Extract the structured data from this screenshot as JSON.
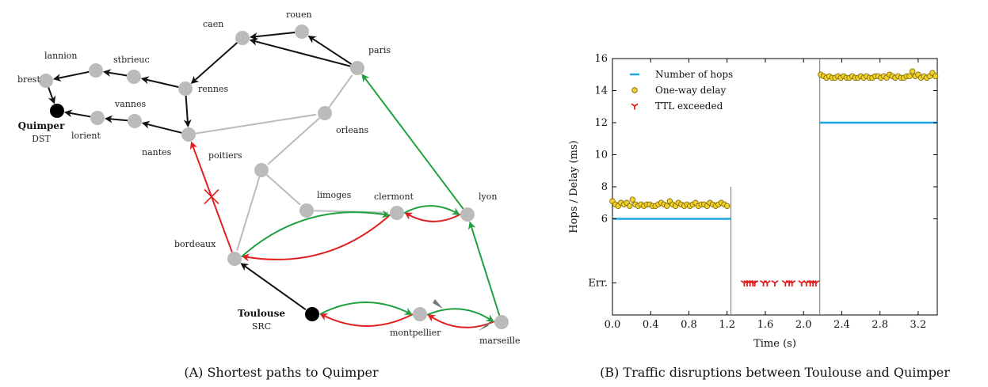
{
  "panel_a": {
    "caption": "(A) Shortest paths to Quimper",
    "nodes": [
      {
        "id": "brest",
        "label": "brest",
        "kind": "normal"
      },
      {
        "id": "lannion",
        "label": "lannion",
        "kind": "normal"
      },
      {
        "id": "stbrieuc",
        "label": "stbrieuc",
        "kind": "normal"
      },
      {
        "id": "caen",
        "label": "caen",
        "kind": "normal"
      },
      {
        "id": "rouen",
        "label": "rouen",
        "kind": "normal"
      },
      {
        "id": "paris",
        "label": "paris",
        "kind": "normal"
      },
      {
        "id": "rennes",
        "label": "rennes",
        "kind": "normal"
      },
      {
        "id": "vannes",
        "label": "vannes",
        "kind": "normal"
      },
      {
        "id": "lorient",
        "label": "lorient",
        "kind": "normal"
      },
      {
        "id": "nantes",
        "label": "nantes",
        "kind": "normal"
      },
      {
        "id": "orleans",
        "label": "orleans",
        "kind": "normal"
      },
      {
        "id": "poitiers",
        "label": "poitiers",
        "kind": "normal"
      },
      {
        "id": "limoges",
        "label": "limoges",
        "kind": "normal"
      },
      {
        "id": "clermont",
        "label": "clermont",
        "kind": "normal"
      },
      {
        "id": "lyon",
        "label": "lyon",
        "kind": "normal"
      },
      {
        "id": "bordeaux",
        "label": "bordeaux",
        "kind": "normal"
      },
      {
        "id": "montpellier",
        "label": "montpellier",
        "kind": "normal"
      },
      {
        "id": "marseille",
        "label": "marseille",
        "kind": "normal"
      },
      {
        "id": "quimper",
        "label": "Quimper",
        "sublabel": "DST",
        "kind": "endpoint"
      },
      {
        "id": "toulouse",
        "label": "Toulouse",
        "sublabel": "SRC",
        "kind": "endpoint"
      }
    ],
    "edges": [
      {
        "from": "rennes",
        "to": "nantes",
        "color": "#111111",
        "arrow": true
      },
      {
        "from": "nantes",
        "to": "vannes",
        "color": "#111111",
        "arrow": true
      },
      {
        "from": "vannes",
        "to": "lorient",
        "color": "#111111",
        "arrow": true
      },
      {
        "from": "lorient",
        "to": "quimper",
        "color": "#111111",
        "arrow": true
      },
      {
        "from": "brest",
        "to": "quimper",
        "color": "#111111",
        "arrow": true
      },
      {
        "from": "lannion",
        "to": "brest",
        "color": "#111111",
        "arrow": true
      },
      {
        "from": "stbrieuc",
        "to": "lannion",
        "color": "#111111",
        "arrow": true
      },
      {
        "from": "rennes",
        "to": "stbrieuc",
        "color": "#111111",
        "arrow": true
      },
      {
        "from": "caen",
        "to": "rennes",
        "color": "#111111",
        "arrow": true
      },
      {
        "from": "rouen",
        "to": "caen",
        "color": "#111111",
        "arrow": true
      },
      {
        "from": "paris",
        "to": "caen",
        "color": "#111111",
        "arrow": true
      },
      {
        "from": "paris",
        "to": "rouen",
        "color": "#111111",
        "arrow": true
      },
      {
        "from": "toulouse",
        "to": "bordeaux",
        "color": "#111111",
        "arrow": true
      },
      {
        "from": "nantes",
        "to": "orleans",
        "color": "#bbbbbb",
        "arrow": false
      },
      {
        "from": "orleans",
        "to": "paris",
        "color": "#bbbbbb",
        "arrow": false
      },
      {
        "from": "orleans",
        "to": "poitiers",
        "color": "#bbbbbb",
        "arrow": false
      },
      {
        "from": "poitiers",
        "to": "bordeaux",
        "color": "#bbbbbb",
        "arrow": false
      },
      {
        "from": "poitiers",
        "to": "limoges",
        "color": "#bbbbbb",
        "arrow": false
      },
      {
        "from": "limoges",
        "to": "clermont",
        "color": "#bbbbbb",
        "arrow": false
      },
      {
        "from": "bordeaux",
        "to": "nantes",
        "color": "#e02020",
        "arrow": true,
        "cross": true
      },
      {
        "from": "clermont",
        "to": "bordeaux",
        "color": "#e02020",
        "arrow": true,
        "bend": -1
      },
      {
        "from": "lyon",
        "to": "clermont",
        "color": "#e02020",
        "arrow": true,
        "bend": -1
      },
      {
        "from": "marseille",
        "to": "montpellier",
        "color": "#e02020",
        "arrow": true,
        "bend": -1
      },
      {
        "from": "montpellier",
        "to": "toulouse",
        "color": "#e02020",
        "arrow": true,
        "bend": -1
      },
      {
        "from": "toulouse",
        "to": "montpellier",
        "color": "#20a040",
        "arrow": true,
        "bend": -1
      },
      {
        "from": "montpellier",
        "to": "marseille",
        "color": "#20a040",
        "arrow": true,
        "bend": -1
      },
      {
        "from": "marseille",
        "to": "lyon",
        "color": "#20a040",
        "arrow": true
      },
      {
        "from": "lyon",
        "to": "paris",
        "color": "#20a040",
        "arrow": true
      },
      {
        "from": "bordeaux",
        "to": "clermont",
        "color": "#20a040",
        "arrow": true,
        "bend": -1
      },
      {
        "from": "clermont",
        "to": "lyon",
        "color": "#20a040",
        "arrow": true,
        "bend": -1
      }
    ],
    "colors": {
      "node": "#bbbbbb",
      "endpoint": "#000000",
      "black_path": "#111111",
      "red_path": "#e02020",
      "green_path": "#20a040",
      "grey_link": "#bbbbbb"
    }
  },
  "chart_data": {
    "type": "scatter",
    "caption": "(B) Traffic disruptions between Toulouse and Quimper",
    "xlabel": "Time (s)",
    "ylabel": "Hops / Delay (ms)",
    "xlim": [
      0.0,
      3.4
    ],
    "ylim": [
      0,
      16
    ],
    "xticks": [
      "0.0",
      "0.4",
      "0.8",
      "1.2",
      "1.6",
      "2.0",
      "2.4",
      "2.8",
      "3.2"
    ],
    "yticks": [
      "6",
      "8",
      "10",
      "12",
      "14",
      "16"
    ],
    "err_tick_label": "Err.",
    "err_level": 2,
    "legend_position": "top-left",
    "vertical_lines": [
      1.24,
      2.17
    ],
    "series": [
      {
        "name": "Number of hops",
        "style": "line",
        "color": "#1ea7e0",
        "segments": [
          {
            "x": [
              0.0,
              1.24
            ],
            "y": [
              6,
              6
            ]
          },
          {
            "x": [
              2.17,
              3.4
            ],
            "y": [
              12,
              12
            ]
          }
        ]
      },
      {
        "name": "One-way delay",
        "style": "circle",
        "color": "#f2d22a",
        "x": [
          0.0,
          0.03,
          0.06,
          0.09,
          0.12,
          0.15,
          0.18,
          0.21,
          0.24,
          0.27,
          0.3,
          0.33,
          0.36,
          0.39,
          0.42,
          0.45,
          0.48,
          0.51,
          0.54,
          0.57,
          0.6,
          0.63,
          0.66,
          0.69,
          0.72,
          0.75,
          0.78,
          0.81,
          0.84,
          0.87,
          0.9,
          0.93,
          0.96,
          0.99,
          1.02,
          1.05,
          1.08,
          1.11,
          1.14,
          1.17,
          1.2,
          2.18,
          2.21,
          2.24,
          2.27,
          2.3,
          2.33,
          2.36,
          2.39,
          2.42,
          2.45,
          2.48,
          2.51,
          2.54,
          2.57,
          2.6,
          2.63,
          2.66,
          2.69,
          2.72,
          2.75,
          2.78,
          2.81,
          2.84,
          2.87,
          2.9,
          2.93,
          2.96,
          2.99,
          3.02,
          3.05,
          3.08,
          3.11,
          3.14,
          3.17,
          3.2,
          3.23,
          3.26,
          3.29,
          3.32,
          3.35,
          3.38
        ],
        "y": [
          7.1,
          6.9,
          6.8,
          7.0,
          6.9,
          7.0,
          6.8,
          7.2,
          6.9,
          6.8,
          6.9,
          6.8,
          6.9,
          6.9,
          6.8,
          6.8,
          6.9,
          7.0,
          6.9,
          6.8,
          7.1,
          6.9,
          6.8,
          7.0,
          6.9,
          6.8,
          6.9,
          6.8,
          6.9,
          7.0,
          6.8,
          6.9,
          6.9,
          6.8,
          7.0,
          6.9,
          6.8,
          6.9,
          7.0,
          6.9,
          6.8,
          15.0,
          14.9,
          14.8,
          14.9,
          14.8,
          14.8,
          14.9,
          14.8,
          14.9,
          14.8,
          14.8,
          14.9,
          14.8,
          14.8,
          14.9,
          14.8,
          14.9,
          14.8,
          14.8,
          14.9,
          14.9,
          14.8,
          14.9,
          14.8,
          15.0,
          14.9,
          14.8,
          14.9,
          14.8,
          14.8,
          14.9,
          14.9,
          15.2,
          14.9,
          15.0,
          14.8,
          14.9,
          14.8,
          14.9,
          15.1,
          14.9
        ]
      },
      {
        "name": "TTL exceeded",
        "style": "tri",
        "color": "#e02020",
        "x": [
          1.38,
          1.41,
          1.44,
          1.47,
          1.49,
          1.58,
          1.62,
          1.7,
          1.81,
          1.85,
          1.88,
          1.98,
          2.03,
          2.07,
          2.1,
          2.13
        ],
        "y": [
          2,
          2,
          2,
          2,
          2,
          2,
          2,
          2,
          2,
          2,
          2,
          2,
          2,
          2,
          2,
          2
        ]
      }
    ]
  }
}
